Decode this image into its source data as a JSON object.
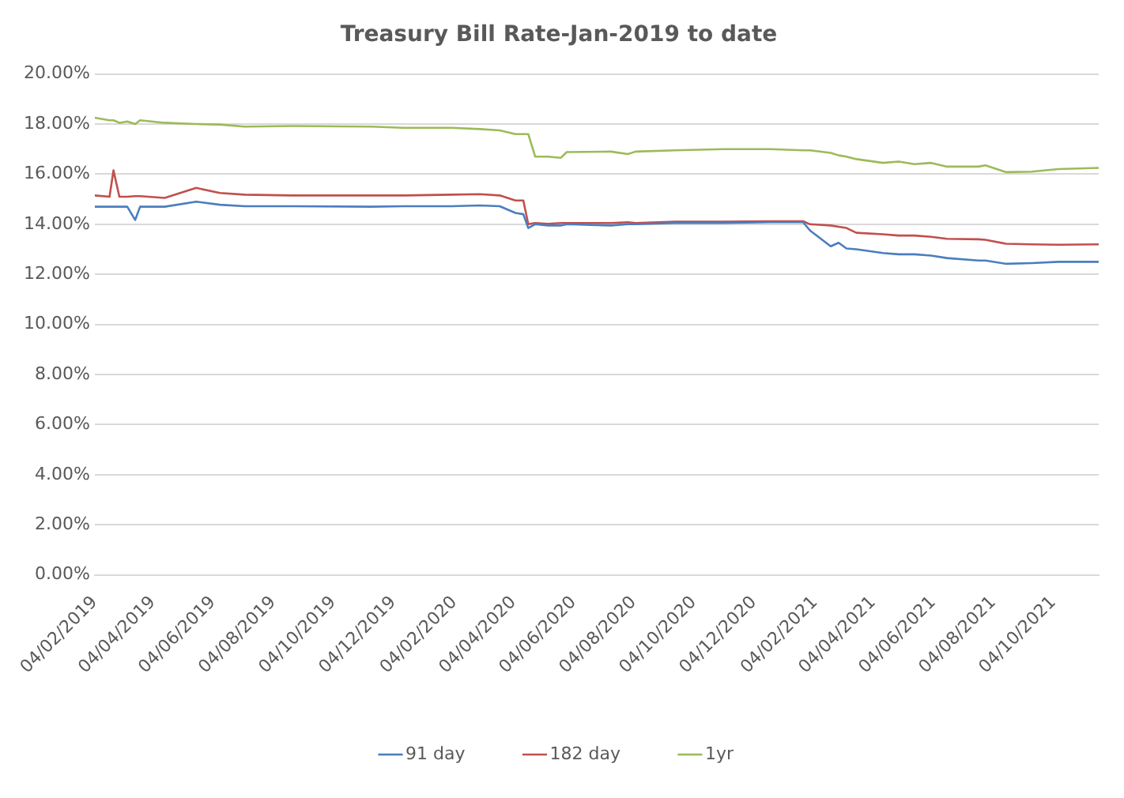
{
  "chart_data": {
    "type": "line",
    "title": "Treasury Bill Rate-Jan-2019 to date",
    "x": [
      "2019-02-04",
      "2019-02-19",
      "2019-02-23",
      "2019-03-01",
      "2019-03-09",
      "2019-03-17",
      "2019-03-22",
      "2019-04-16",
      "2019-05-18",
      "2019-06-11",
      "2019-07-06",
      "2019-08-23",
      "2019-11-12",
      "2019-12-15",
      "2020-02-01",
      "2020-03-01",
      "2020-03-21",
      "2020-04-06",
      "2020-04-14",
      "2020-04-19",
      "2020-04-26",
      "2020-05-09",
      "2020-05-22",
      "2020-05-28",
      "2020-07-12",
      "2020-07-29",
      "2020-08-06",
      "2020-09-15",
      "2020-11-03",
      "2020-12-21",
      "2021-01-23",
      "2021-01-30",
      "2021-02-20",
      "2021-02-28",
      "2021-03-08",
      "2021-03-18",
      "2021-04-14",
      "2021-04-30",
      "2021-05-16",
      "2021-06-02",
      "2021-06-18",
      "2021-07-20",
      "2021-07-27",
      "2021-08-17",
      "2021-09-12",
      "2021-10-09",
      "2021-11-19"
    ],
    "series": [
      {
        "name": "91 day",
        "color": "#4a7ebf",
        "values": [
          14.7,
          14.7,
          14.7,
          14.7,
          14.7,
          14.17,
          14.7,
          14.7,
          14.9,
          14.78,
          14.72,
          14.72,
          14.7,
          14.72,
          14.72,
          14.75,
          14.72,
          14.45,
          14.4,
          13.85,
          14.0,
          13.95,
          13.95,
          14.0,
          13.95,
          14.0,
          14.0,
          14.05,
          14.05,
          14.08,
          14.08,
          13.75,
          13.12,
          13.26,
          13.03,
          13.0,
          12.85,
          12.8,
          12.8,
          12.75,
          12.65,
          12.55,
          12.55,
          12.42,
          12.45,
          12.5,
          12.5
        ]
      },
      {
        "name": "182 day",
        "color": "#c0504d",
        "values": [
          15.15,
          15.1,
          16.15,
          15.1,
          15.1,
          15.12,
          15.12,
          15.05,
          15.45,
          15.25,
          15.18,
          15.15,
          15.15,
          15.15,
          15.18,
          15.2,
          15.15,
          14.95,
          14.95,
          14.0,
          14.05,
          14.02,
          14.05,
          14.05,
          14.05,
          14.08,
          14.05,
          14.1,
          14.1,
          14.12,
          14.12,
          14.0,
          13.95,
          13.9,
          13.85,
          13.66,
          13.6,
          13.55,
          13.55,
          13.5,
          13.42,
          13.4,
          13.38,
          13.22,
          13.2,
          13.18,
          13.2
        ]
      },
      {
        "name": "1yr",
        "color": "#9bbb59",
        "values": [
          18.25,
          18.15,
          18.15,
          18.05,
          18.1,
          18.0,
          18.15,
          18.05,
          18.0,
          17.98,
          17.9,
          17.92,
          17.9,
          17.85,
          17.85,
          17.8,
          17.75,
          17.6,
          17.6,
          17.6,
          16.7,
          16.7,
          16.65,
          16.88,
          16.9,
          16.8,
          16.9,
          16.95,
          17.0,
          17.0,
          16.95,
          16.95,
          16.85,
          16.75,
          16.7,
          16.6,
          16.45,
          16.5,
          16.4,
          16.45,
          16.3,
          16.3,
          16.35,
          16.08,
          16.1,
          16.2,
          16.25
        ]
      }
    ],
    "xlim": [
      "2019-02-04",
      "2021-11-19"
    ],
    "xticks": [
      {
        "value": "2019-02-04",
        "label": "04/02/2019"
      },
      {
        "value": "2019-04-04",
        "label": "04/04/2019"
      },
      {
        "value": "2019-06-04",
        "label": "04/06/2019"
      },
      {
        "value": "2019-08-04",
        "label": "04/08/2019"
      },
      {
        "value": "2019-10-04",
        "label": "04/10/2019"
      },
      {
        "value": "2019-12-04",
        "label": "04/12/2019"
      },
      {
        "value": "2020-02-04",
        "label": "04/02/2020"
      },
      {
        "value": "2020-04-04",
        "label": "04/04/2020"
      },
      {
        "value": "2020-06-04",
        "label": "04/06/2020"
      },
      {
        "value": "2020-08-04",
        "label": "04/08/2020"
      },
      {
        "value": "2020-10-04",
        "label": "04/10/2020"
      },
      {
        "value": "2020-12-04",
        "label": "04/12/2020"
      },
      {
        "value": "2021-02-04",
        "label": "04/02/2021"
      },
      {
        "value": "2021-04-04",
        "label": "04/04/2021"
      },
      {
        "value": "2021-06-04",
        "label": "04/06/2021"
      },
      {
        "value": "2021-08-04",
        "label": "04/08/2021"
      },
      {
        "value": "2021-10-04",
        "label": "04/10/2021"
      }
    ],
    "ylim": [
      0,
      20
    ],
    "yticks": [
      {
        "value": 0,
        "label": "0.00%"
      },
      {
        "value": 2,
        "label": "2.00%"
      },
      {
        "value": 4,
        "label": "4.00%"
      },
      {
        "value": 6,
        "label": "6.00%"
      },
      {
        "value": 8,
        "label": "8.00%"
      },
      {
        "value": 10,
        "label": "10.00%"
      },
      {
        "value": 12,
        "label": "12.00%"
      },
      {
        "value": 14,
        "label": "14.00%"
      },
      {
        "value": 16,
        "label": "16.00%"
      },
      {
        "value": 18,
        "label": "18.00%"
      },
      {
        "value": 20,
        "label": "20.00%"
      }
    ],
    "grid": "y",
    "legend": "bottom",
    "marker": "none",
    "line_style": "solid"
  }
}
